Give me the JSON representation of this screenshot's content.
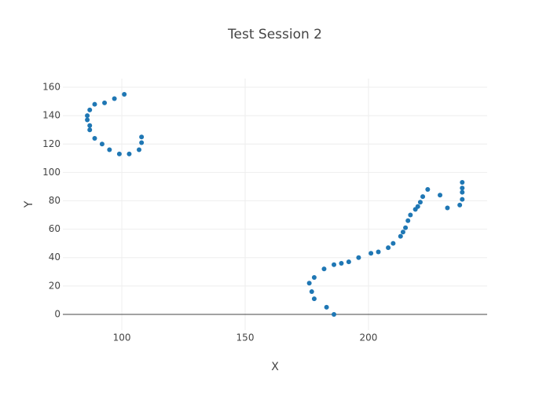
{
  "chart_data": {
    "type": "scatter",
    "title": "Test Session 2",
    "x_label": "X",
    "y_label": "Y",
    "x": [
      101,
      97,
      93,
      89,
      87,
      86,
      86,
      87,
      87,
      89,
      92,
      95,
      99,
      103,
      107,
      108,
      108,
      186,
      183,
      178,
      177,
      176,
      178,
      182,
      186,
      189,
      192,
      196,
      201,
      204,
      208,
      210,
      213,
      214,
      215,
      216,
      217,
      219,
      220,
      221,
      222,
      224,
      229,
      232,
      237,
      238,
      238,
      238,
      238
    ],
    "values": [
      155,
      152,
      149,
      148,
      144,
      140,
      137,
      133,
      130,
      124,
      120,
      116,
      113,
      113,
      116,
      121,
      125,
      0,
      5,
      11,
      16,
      22,
      26,
      32,
      35,
      36,
      37,
      40,
      43,
      44,
      47,
      50,
      55,
      58,
      61,
      66,
      70,
      74,
      76,
      79,
      83,
      88,
      84,
      75,
      77,
      81,
      86,
      89,
      93
    ],
    "color": "#1f77b4",
    "xlim": [
      76.1,
      248.1
    ],
    "xticks": [
      100,
      150,
      200
    ],
    "ylim": [
      -11.1,
      166.1
    ],
    "yticks": [
      0,
      20,
      40,
      60,
      80,
      100,
      120,
      140,
      160
    ],
    "grid": true,
    "zeroline": true
  }
}
